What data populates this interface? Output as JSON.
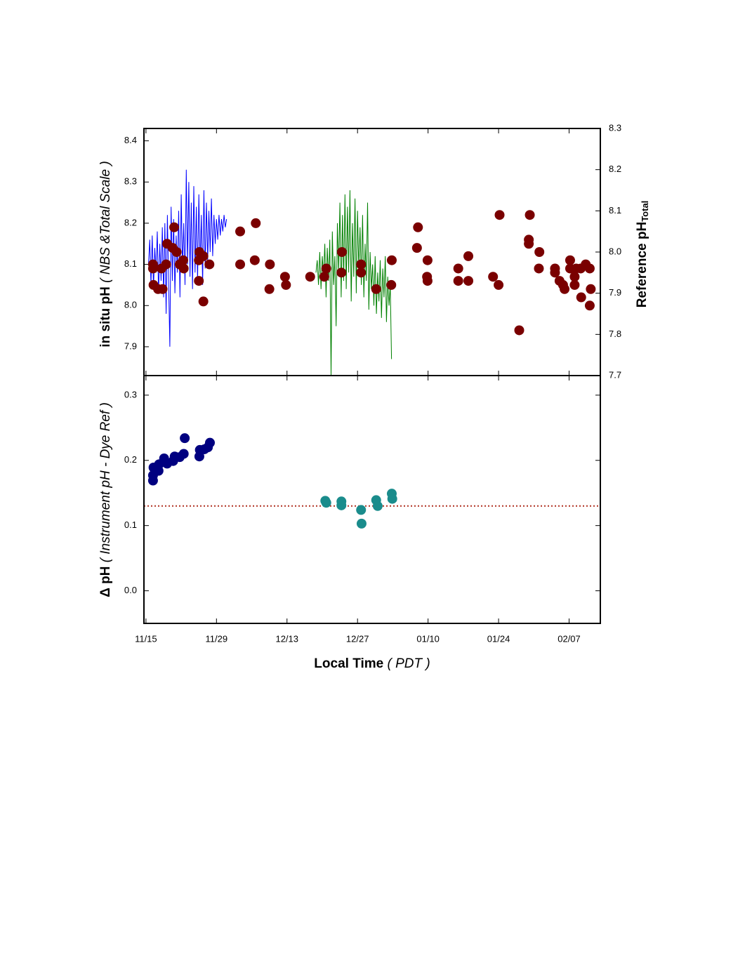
{
  "chart_data": [
    {
      "type": "line",
      "ylabel": "in situ pH",
      "ylabel_note": "( NBS &Total Scale )",
      "y2label": "Reference pH",
      "y2label_sub": "Total",
      "xlim": [
        -0.4,
        90.2
      ],
      "ylim": [
        7.83,
        8.43
      ],
      "yticks": [
        7.9,
        {
          "value": 8,
          "label": "8.0"
        },
        8.1,
        8.2,
        8.3,
        8.4
      ],
      "y2lim": [
        7.7,
        8.3
      ],
      "y2ticks": [
        7.7,
        7.8,
        7.9,
        {
          "value": 8,
          "label": "8.0"
        },
        8.1,
        8.2,
        8.3
      ],
      "series": [
        {
          "type": "line",
          "color": "#0000ff",
          "x": [
            0.5,
            0.75,
            1,
            1.25,
            1.5,
            1.75,
            2,
            2.25,
            2.5,
            2.75,
            3,
            3.25,
            3.5,
            3.75,
            4,
            4.25,
            4.5,
            4.75,
            5,
            5.25,
            5.5,
            5.75,
            6,
            6.25,
            6.5,
            6.75,
            7,
            7.25,
            7.5,
            7.75,
            8,
            8.25,
            8.5,
            8.75,
            9,
            9.25,
            9.5,
            9.75,
            10,
            10.25,
            10.5,
            10.75,
            11,
            11.25,
            11.5,
            11.75,
            12,
            12.25,
            12.5,
            12.75,
            13,
            13.25,
            13.5,
            13.75,
            14,
            14.25,
            14.5,
            14.75,
            15,
            15.25,
            15.5,
            15.75,
            16
          ],
          "values": [
            8.1,
            8.16,
            8.05,
            8.17,
            8.04,
            8.14,
            8.08,
            8.18,
            8.03,
            8.15,
            8.06,
            8.19,
            8.02,
            8.2,
            7.98,
            8.22,
            8.05,
            7.9,
            8.24,
            8.06,
            8.21,
            8.03,
            8.17,
            8.08,
            8.23,
            8.02,
            8.27,
            8.09,
            8.2,
            8.05,
            8.33,
            8.1,
            8.3,
            8.07,
            8.25,
            8.04,
            8.29,
            8.08,
            8.24,
            8.06,
            8.27,
            8.1,
            8.22,
            8.05,
            8.28,
            8.09,
            8.25,
            8.11,
            8.23,
            8.13,
            8.26,
            8.12,
            8.22,
            8.15,
            8.21,
            8.16,
            8.22,
            8.17,
            8.21,
            8.18,
            8.22,
            8.19,
            8.21
          ]
        },
        {
          "type": "line",
          "color": "#008000",
          "x": [
            33.75,
            34,
            34.25,
            34.5,
            34.75,
            35,
            35.25,
            35.5,
            35.75,
            36,
            36.25,
            36.5,
            36.75,
            37,
            37.25,
            37.5,
            37.75,
            38,
            38.25,
            38.5,
            38.75,
            39,
            39.25,
            39.5,
            39.75,
            40,
            40.25,
            40.5,
            40.75,
            41,
            41.25,
            41.5,
            41.75,
            42,
            42.25,
            42.5,
            42.75,
            43,
            43.25,
            43.5,
            43.75,
            44,
            44.25,
            44.5,
            44.75,
            45,
            45.25,
            45.5,
            45.75,
            46,
            46.25,
            46.5,
            46.75,
            47,
            47.25,
            47.5,
            47.75,
            48,
            48.25,
            48.5,
            48.75
          ],
          "values": [
            8.08,
            8.11,
            8.05,
            8.13,
            8.04,
            8.12,
            8.07,
            8.15,
            8.02,
            8.14,
            8.06,
            8.16,
            7.83,
            8.18,
            8.05,
            8.12,
            7.95,
            8.2,
            8.08,
            8.25,
            8.02,
            8.22,
            8.06,
            8.27,
            8.04,
            8.24,
            8.08,
            8.28,
            8.01,
            8.2,
            8.07,
            8.26,
            8.03,
            8.23,
            8.09,
            8.19,
            8.05,
            8.22,
            8.02,
            8.15,
            8.06,
            8.25,
            7.99,
            8.13,
            8.04,
            8.1,
            8.0,
            8.12,
            7.98,
            8.08,
            8.01,
            8.11,
            7.97,
            8.09,
            8.02,
            8.12,
            7.96,
            8.07,
            8.0,
            8.05,
            7.87
          ]
        },
        {
          "type": "scatter",
          "axis": "y2",
          "color": "#7a0000",
          "x": [
            1.4,
            1.4,
            1.5,
            2.4,
            3.3,
            3.1,
            4.0,
            4.2,
            5.3,
            5.6,
            6.1,
            6.7,
            7.5,
            7.4,
            10.6,
            10.5,
            11.4,
            10.5,
            11.4,
            12.6,
            18.7,
            18.7,
            21.6,
            21.8,
            24.6,
            24.5,
            27.6,
            27.8,
            32.6,
            35.4,
            35.8,
            38.8,
            38.9,
            42.7,
            42.7,
            45.7,
            48.8,
            48.7,
            53.8,
            54.0,
            55.9,
            55.8,
            55.9,
            62.0,
            62.0,
            64.0,
            64.0,
            68.9,
            70.0,
            70.2,
            74.1,
            76.2,
            76.0,
            76.0,
            78.1,
            78.0,
            81.2,
            81.2,
            82.1,
            83.1,
            82.8,
            84.2,
            84.2,
            85.1,
            85.1,
            85.4,
            86.4,
            86.3,
            87.3,
            88.1,
            88.3,
            88.1
          ],
          "values": [
            7.97,
            7.96,
            7.92,
            7.91,
            7.91,
            7.96,
            7.97,
            8.02,
            8.01,
            8.06,
            8.0,
            7.97,
            7.96,
            7.98,
            8.0,
            7.98,
            7.99,
            7.93,
            7.88,
            7.97,
            7.97,
            8.05,
            7.98,
            8.07,
            7.97,
            7.91,
            7.94,
            7.92,
            7.94,
            7.94,
            7.96,
            7.95,
            8.0,
            7.97,
            7.95,
            7.91,
            7.98,
            7.92,
            8.01,
            8.06,
            7.98,
            7.94,
            7.93,
            7.96,
            7.93,
            7.99,
            7.93,
            7.94,
            7.92,
            8.09,
            7.81,
            8.09,
            8.03,
            8.02,
            8.0,
            7.96,
            7.96,
            7.95,
            7.93,
            7.91,
            7.92,
            7.98,
            7.96,
            7.94,
            7.92,
            7.96,
            7.89,
            7.96,
            7.97,
            7.96,
            7.91,
            7.87
          ]
        }
      ]
    },
    {
      "type": "scatter",
      "ylabel": "Δ pH",
      "ylabel_note": "( Instrument pH - Dye Ref )",
      "xlabel": "Local Time",
      "xlabel_note": "( PDT )",
      "xlim": [
        -0.4,
        90.2
      ],
      "xticks": [
        {
          "value": 0,
          "label": "11/15"
        },
        {
          "value": 14,
          "label": "11/29"
        },
        {
          "value": 28,
          "label": "12/13"
        },
        {
          "value": 42,
          "label": "12/27"
        },
        {
          "value": 56,
          "label": "01/10"
        },
        {
          "value": 70,
          "label": "01/24"
        },
        {
          "value": 84,
          "label": "02/07"
        }
      ],
      "ylim": [
        -0.05,
        0.33
      ],
      "yticks": [
        {
          "value": 0,
          "label": "0.0"
        },
        0.1,
        0.2,
        0.3
      ],
      "reference_line": {
        "value": 0.13,
        "color": "#b03020"
      },
      "series": [
        {
          "type": "scatter",
          "color": "#000080",
          "x": [
            1.4,
            1.4,
            1.5,
            2.5,
            2.6,
            3.6,
            4.2,
            5.4,
            5.7,
            6.7,
            7.5,
            7.7,
            10.6,
            10.7,
            11.6,
            12.3,
            12.7
          ],
          "values": [
            0.169,
            0.177,
            0.189,
            0.184,
            0.194,
            0.203,
            0.195,
            0.199,
            0.206,
            0.205,
            0.21,
            0.234,
            0.206,
            0.216,
            0.217,
            0.22,
            0.227
          ]
        },
        {
          "type": "scatter",
          "color": "#1a8c8c",
          "x": [
            35.6,
            35.8,
            38.8,
            38.8,
            42.7,
            42.8,
            45.7,
            46.0,
            48.8,
            48.9
          ],
          "values": [
            0.138,
            0.135,
            0.137,
            0.131,
            0.124,
            0.103,
            0.139,
            0.13,
            0.149,
            0.141
          ]
        }
      ]
    }
  ]
}
